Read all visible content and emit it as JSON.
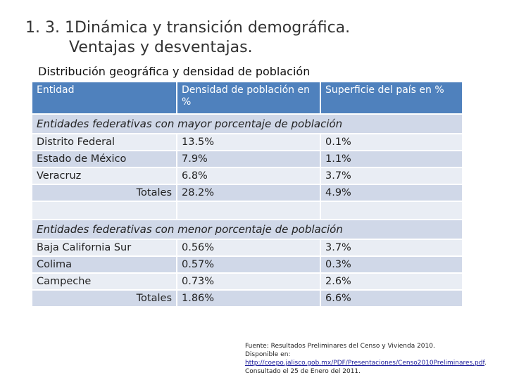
{
  "slide": {
    "title_line1": "1. 3. 1Dinámica y transición demográfica.",
    "title_line2": "Ventajas y desventajas.",
    "subtitle": "Distribución geográfica y densidad de población"
  },
  "table": {
    "headers": [
      "Entidad",
      "Densidad de población en %",
      "Superficie del país en %"
    ],
    "group_mayor": "Entidades federativas con mayor porcentaje de población",
    "mayor_rows": [
      [
        "Distrito Federal",
        "13.5%",
        "0.1%"
      ],
      [
        "Estado de México",
        "7.9%",
        "1.1%"
      ],
      [
        "Veracruz",
        "6.8%",
        "3.7%"
      ]
    ],
    "mayor_totals": [
      "Totales",
      "28.2%",
      "4.9%"
    ],
    "group_menor": "Entidades federativas con menor porcentaje de población",
    "menor_rows": [
      [
        "Baja California Sur",
        "0.56%",
        "3.7%"
      ],
      [
        "Colima",
        "0.57%",
        "0.3%"
      ],
      [
        "Campeche",
        "0.73%",
        "2.6%"
      ]
    ],
    "menor_totals": [
      "Totales",
      "1.86%",
      "6.6%"
    ]
  },
  "source": {
    "line1": "Fuente: Resultados Preliminares del Censo y Vivienda 2010.",
    "line2": "Disponible en:",
    "link": "http://coepo.jalisco.gob.mx/PDF/Presentaciones/Censo2010Preliminares.pdf",
    "tail": ". Consultado el 25 de Enero del 2011."
  },
  "colors": {
    "header_bg": "#4f81bd",
    "row_dark": "#d0d8e8",
    "row_light": "#e9edf4"
  }
}
